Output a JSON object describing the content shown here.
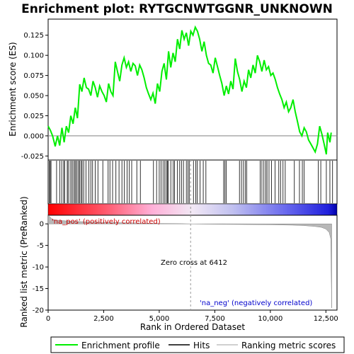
{
  "chart_data": {
    "type": "line",
    "title": "Enrichment plot: RYTGCNWTGGNR_UNKNOWN",
    "xlabel": "Rank in Ordered Dataset",
    "ylabel_top": "Enrichment score (ES)",
    "ylabel_bottom": "Ranked list metric (PreRanked)",
    "xlim": [
      0,
      13000
    ],
    "ylim_top": [
      -0.03,
      0.145
    ],
    "ylim_bottom": [
      -20,
      2
    ],
    "x_ticks": [
      0,
      2500,
      5000,
      7500,
      10000,
      12500
    ],
    "x_tick_labels": [
      "0",
      "2,500",
      "5,000",
      "7,500",
      "10,000",
      "12,500"
    ],
    "y_ticks_top": [
      -0.025,
      0.0,
      0.025,
      0.05,
      0.075,
      0.1,
      0.125
    ],
    "y_tick_labels_top": [
      "-0.025",
      "0.000",
      "0.025",
      "0.050",
      "0.075",
      "0.100",
      "0.125"
    ],
    "y_ticks_bottom": [
      0,
      -5,
      -10,
      -15,
      -20
    ],
    "y_tick_labels_bottom": [
      "0",
      "-5",
      "-10",
      "-15",
      "-20"
    ],
    "pos_label": "'na_pos' (positively correlated)",
    "neg_label": "'na_neg' (negatively correlated)",
    "zero_cross_label": "Zero cross at 6412",
    "zero_cross": 6412,
    "total_genes": 12800,
    "enrichment_profile": [
      [
        0,
        0.012
      ],
      [
        100,
        0.007
      ],
      [
        200,
        0.0
      ],
      [
        320,
        -0.013
      ],
      [
        420,
        0.0
      ],
      [
        520,
        -0.012
      ],
      [
        620,
        0.01
      ],
      [
        720,
        -0.008
      ],
      [
        820,
        0.012
      ],
      [
        920,
        0.004
      ],
      [
        1020,
        0.025
      ],
      [
        1120,
        0.015
      ],
      [
        1220,
        0.035
      ],
      [
        1320,
        0.022
      ],
      [
        1420,
        0.064
      ],
      [
        1520,
        0.055
      ],
      [
        1620,
        0.072
      ],
      [
        1720,
        0.06
      ],
      [
        1820,
        0.058
      ],
      [
        1920,
        0.05
      ],
      [
        2020,
        0.068
      ],
      [
        2120,
        0.06
      ],
      [
        2220,
        0.048
      ],
      [
        2320,
        0.062
      ],
      [
        2420,
        0.055
      ],
      [
        2520,
        0.05
      ],
      [
        2620,
        0.042
      ],
      [
        2720,
        0.065
      ],
      [
        2820,
        0.055
      ],
      [
        2920,
        0.05
      ],
      [
        3020,
        0.092
      ],
      [
        3120,
        0.08
      ],
      [
        3220,
        0.068
      ],
      [
        3320,
        0.088
      ],
      [
        3420,
        0.097
      ],
      [
        3520,
        0.085
      ],
      [
        3620,
        0.092
      ],
      [
        3720,
        0.08
      ],
      [
        3820,
        0.09
      ],
      [
        3920,
        0.087
      ],
      [
        4020,
        0.075
      ],
      [
        4120,
        0.088
      ],
      [
        4220,
        0.082
      ],
      [
        4320,
        0.072
      ],
      [
        4420,
        0.06
      ],
      [
        4520,
        0.052
      ],
      [
        4620,
        0.045
      ],
      [
        4720,
        0.053
      ],
      [
        4820,
        0.04
      ],
      [
        4920,
        0.065
      ],
      [
        5020,
        0.055
      ],
      [
        5120,
        0.08
      ],
      [
        5220,
        0.09
      ],
      [
        5320,
        0.07
      ],
      [
        5420,
        0.105
      ],
      [
        5520,
        0.085
      ],
      [
        5620,
        0.103
      ],
      [
        5720,
        0.092
      ],
      [
        5820,
        0.12
      ],
      [
        5920,
        0.108
      ],
      [
        6020,
        0.131
      ],
      [
        6120,
        0.12
      ],
      [
        6220,
        0.128
      ],
      [
        6320,
        0.112
      ],
      [
        6420,
        0.13
      ],
      [
        6520,
        0.125
      ],
      [
        6620,
        0.135
      ],
      [
        6720,
        0.13
      ],
      [
        6820,
        0.12
      ],
      [
        6920,
        0.105
      ],
      [
        7020,
        0.117
      ],
      [
        7120,
        0.1
      ],
      [
        7220,
        0.09
      ],
      [
        7320,
        0.088
      ],
      [
        7420,
        0.078
      ],
      [
        7520,
        0.097
      ],
      [
        7620,
        0.086
      ],
      [
        7720,
        0.075
      ],
      [
        7820,
        0.065
      ],
      [
        7920,
        0.05
      ],
      [
        8020,
        0.062
      ],
      [
        8120,
        0.052
      ],
      [
        8220,
        0.068
      ],
      [
        8320,
        0.058
      ],
      [
        8420,
        0.096
      ],
      [
        8520,
        0.08
      ],
      [
        8620,
        0.07
      ],
      [
        8720,
        0.055
      ],
      [
        8820,
        0.068
      ],
      [
        8920,
        0.06
      ],
      [
        9020,
        0.082
      ],
      [
        9120,
        0.072
      ],
      [
        9220,
        0.088
      ],
      [
        9320,
        0.078
      ],
      [
        9420,
        0.1
      ],
      [
        9520,
        0.092
      ],
      [
        9620,
        0.08
      ],
      [
        9720,
        0.094
      ],
      [
        9820,
        0.082
      ],
      [
        9920,
        0.086
      ],
      [
        10020,
        0.075
      ],
      [
        10120,
        0.078
      ],
      [
        10220,
        0.07
      ],
      [
        10320,
        0.06
      ],
      [
        10420,
        0.052
      ],
      [
        10520,
        0.045
      ],
      [
        10620,
        0.035
      ],
      [
        10720,
        0.042
      ],
      [
        10820,
        0.03
      ],
      [
        10920,
        0.035
      ],
      [
        11020,
        0.045
      ],
      [
        11120,
        0.03
      ],
      [
        11220,
        0.018
      ],
      [
        11320,
        0.005
      ],
      [
        11420,
        0.0
      ],
      [
        11520,
        0.01
      ],
      [
        11620,
        0.005
      ],
      [
        11720,
        -0.005
      ],
      [
        11820,
        -0.01
      ],
      [
        11920,
        -0.015
      ],
      [
        12020,
        -0.02
      ],
      [
        12120,
        -0.01
      ],
      [
        12220,
        0.012
      ],
      [
        12320,
        0.002
      ],
      [
        12420,
        -0.01
      ],
      [
        12520,
        -0.023
      ],
      [
        12580,
        0.004
      ],
      [
        12680,
        -0.008
      ],
      [
        12740,
        0.004
      ]
    ],
    "hits": [
      60,
      90,
      130,
      380,
      520,
      610,
      700,
      740,
      860,
      900,
      990,
      1060,
      1120,
      1190,
      1240,
      1300,
      1370,
      1410,
      1480,
      1530,
      1600,
      1700,
      1830,
      1920,
      2000,
      2120,
      2240,
      2460,
      2700,
      2780,
      2900,
      3050,
      3190,
      3320,
      3430,
      3550,
      3650,
      3760,
      3990,
      4150,
      4740,
      4880,
      5000,
      5080,
      5170,
      5250,
      5320,
      5370,
      5410,
      5520,
      5630,
      5690,
      5820,
      5920,
      6000,
      6090,
      6220,
      6290,
      6350,
      6540,
      6640,
      6710,
      6840,
      6980,
      7100,
      7900,
      7960,
      8020,
      8610,
      8700,
      8790,
      8870,
      8940,
      9540,
      9620,
      9710,
      9790,
      9850,
      9940,
      10050,
      10210,
      10380,
      10460,
      10570,
      10670,
      11080,
      11310,
      11440,
      11520,
      12160,
      12270,
      12520,
      12680,
      12800
    ],
    "rank_metric": [
      [
        0,
        2.0
      ],
      [
        200,
        1.0
      ],
      [
        500,
        0.8
      ],
      [
        1000,
        0.6
      ],
      [
        2000,
        0.4
      ],
      [
        3000,
        0.3
      ],
      [
        4000,
        0.2
      ],
      [
        5000,
        0.1
      ],
      [
        6000,
        0.05
      ],
      [
        6412,
        0.0
      ],
      [
        7000,
        -0.05
      ],
      [
        8000,
        -0.1
      ],
      [
        9000,
        -0.15
      ],
      [
        10000,
        -0.2
      ],
      [
        11000,
        -0.3
      ],
      [
        11500,
        -0.4
      ],
      [
        12000,
        -0.6
      ],
      [
        12300,
        -0.8
      ],
      [
        12500,
        -1.2
      ],
      [
        12650,
        -2.0
      ],
      [
        12720,
        -3.5
      ],
      [
        12760,
        -19.5
      ]
    ],
    "legend": {
      "items": [
        {
          "label": "Enrichment profile",
          "color": "#00ee00"
        },
        {
          "label": "Hits",
          "color": "#000000"
        },
        {
          "label": "Ranking metric scores",
          "color": "#c0c0c0"
        }
      ]
    }
  }
}
